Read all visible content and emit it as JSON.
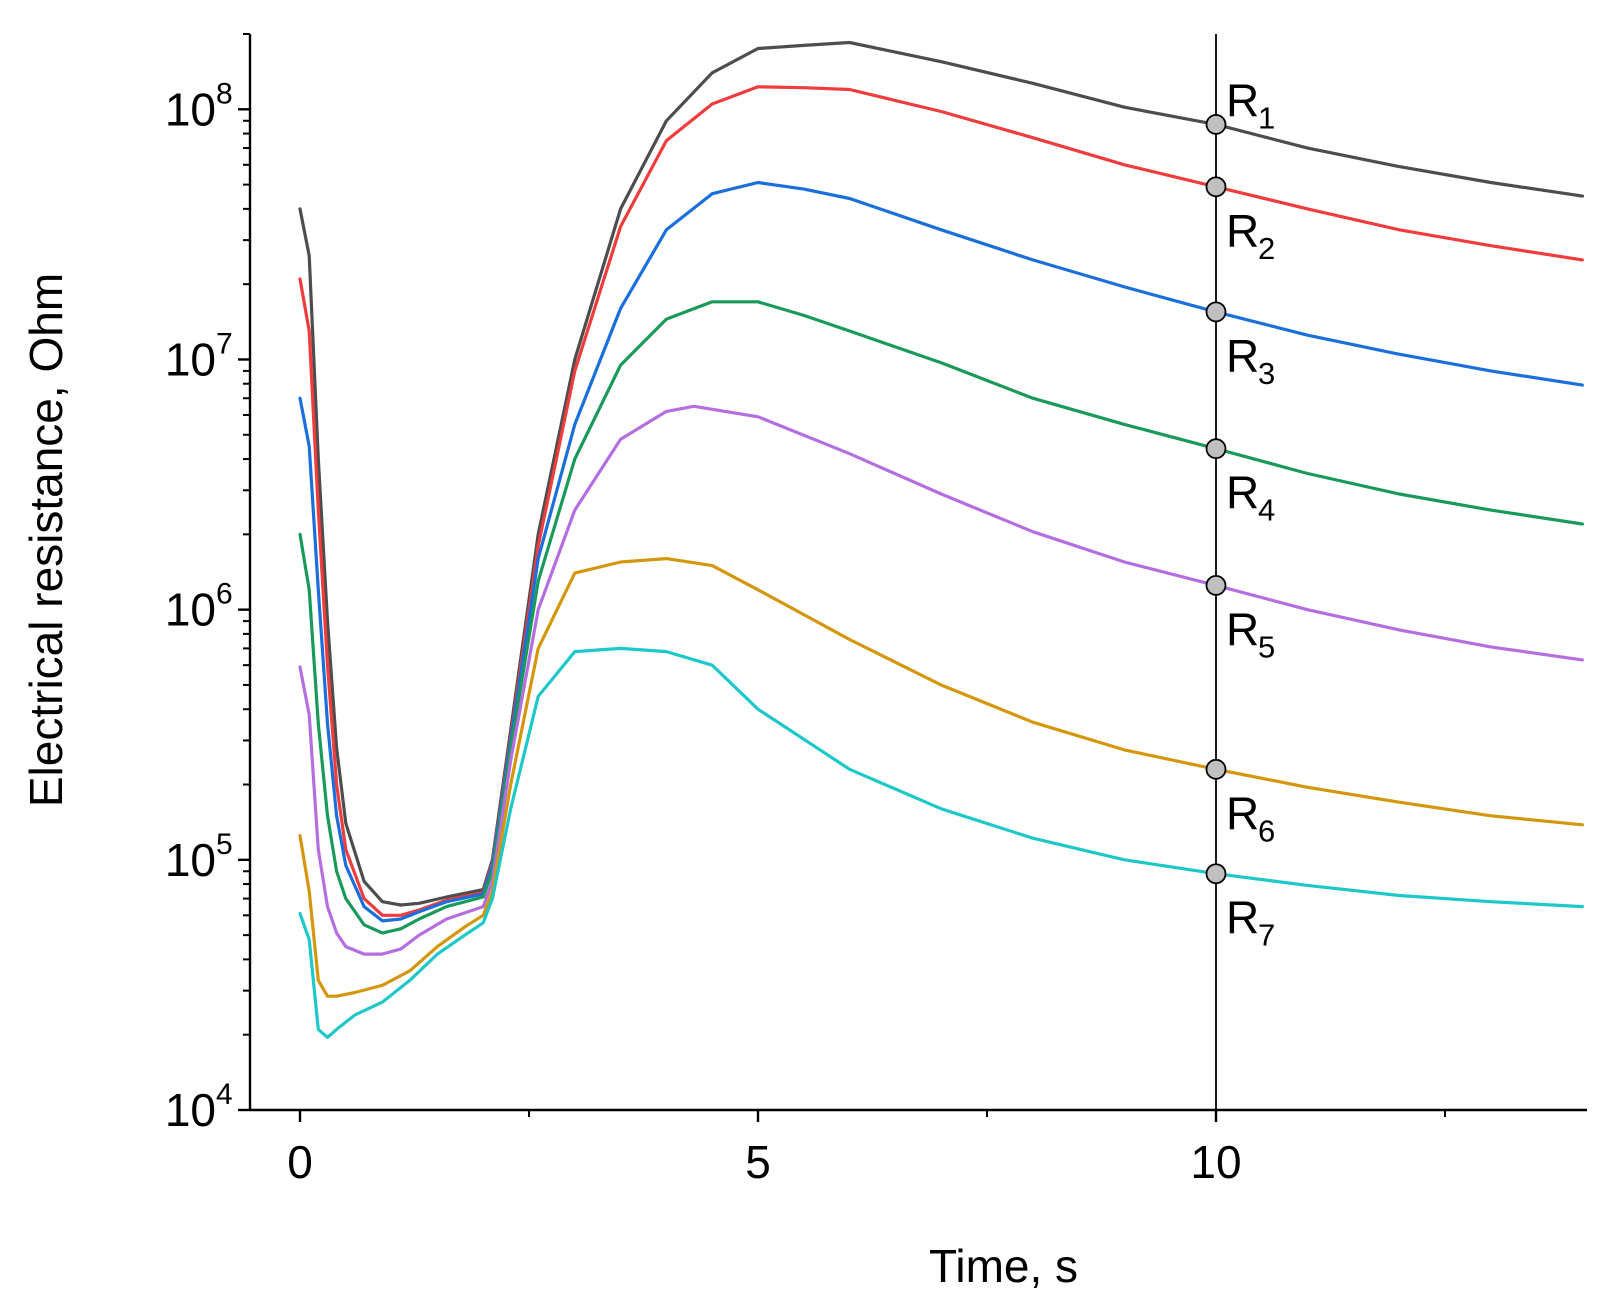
{
  "chart_data": {
    "type": "line",
    "title": "",
    "xlabel": "Time, s",
    "ylabel": "Electrical resistance, Ohm",
    "yscale": "log",
    "xlim": [
      -0.5,
      14
    ],
    "ylim": [
      10000,
      200000000
    ],
    "grid": false,
    "legend": "none",
    "x_ticks": [
      0,
      5,
      10
    ],
    "x_minor_ticks": [
      2.5,
      7.5,
      12.5
    ],
    "y_ticks": [
      {
        "value": 10000,
        "base": "10",
        "exp": "4"
      },
      {
        "value": 100000,
        "base": "10",
        "exp": "5"
      },
      {
        "value": 1000000,
        "base": "10",
        "exp": "6"
      },
      {
        "value": 10000000,
        "base": "10",
        "exp": "7"
      },
      {
        "value": 100000000,
        "base": "10",
        "exp": "8"
      }
    ],
    "marker_line_x": 10,
    "series": [
      {
        "name": "R1",
        "label_main": "R",
        "label_sub": "1",
        "color": "#4d4d4d",
        "label_pos": "above-right",
        "marker_value": 87000000,
        "points": [
          [
            0,
            40000000
          ],
          [
            0.1,
            26000000
          ],
          [
            0.2,
            4000000
          ],
          [
            0.3,
            900000
          ],
          [
            0.4,
            280000
          ],
          [
            0.5,
            140000
          ],
          [
            0.7,
            82000
          ],
          [
            0.9,
            68000
          ],
          [
            1.1,
            66000
          ],
          [
            1.3,
            67000
          ],
          [
            1.6,
            71000
          ],
          [
            2.0,
            76000
          ],
          [
            2.1,
            100000
          ],
          [
            2.3,
            330000
          ],
          [
            2.6,
            2000000
          ],
          [
            3.0,
            10000000
          ],
          [
            3.5,
            40000000
          ],
          [
            4.0,
            90000000
          ],
          [
            4.5,
            140000000
          ],
          [
            5.0,
            175000000
          ],
          [
            5.5,
            180000000
          ],
          [
            6.0,
            185000000
          ],
          [
            7.0,
            155000000
          ],
          [
            8.0,
            127000000
          ],
          [
            9.0,
            102000000
          ],
          [
            10.0,
            87000000
          ],
          [
            11.0,
            70000000
          ],
          [
            12.0,
            59000000
          ],
          [
            13.0,
            51000000
          ],
          [
            14.0,
            45000000
          ]
        ]
      },
      {
        "name": "R2",
        "label_main": "R",
        "label_sub": "2",
        "color": "#f03c3c",
        "label_pos": "below-right",
        "marker_value": 49000000,
        "points": [
          [
            0,
            21000000
          ],
          [
            0.1,
            13000000
          ],
          [
            0.2,
            2500000
          ],
          [
            0.3,
            600000
          ],
          [
            0.4,
            200000
          ],
          [
            0.5,
            110000
          ],
          [
            0.7,
            70000
          ],
          [
            0.9,
            60000
          ],
          [
            1.1,
            60000
          ],
          [
            1.3,
            63000
          ],
          [
            1.6,
            69000
          ],
          [
            2.0,
            74000
          ],
          [
            2.1,
            97000
          ],
          [
            2.3,
            310000
          ],
          [
            2.6,
            1800000
          ],
          [
            3.0,
            9000000
          ],
          [
            3.5,
            34000000
          ],
          [
            4.0,
            75000000
          ],
          [
            4.5,
            105000000
          ],
          [
            5.0,
            123000000
          ],
          [
            5.5,
            122000000
          ],
          [
            6.0,
            120000000
          ],
          [
            7.0,
            98000000
          ],
          [
            8.0,
            77000000
          ],
          [
            9.0,
            60000000
          ],
          [
            10.0,
            49000000
          ],
          [
            11.0,
            40000000
          ],
          [
            12.0,
            33000000
          ],
          [
            13.0,
            28500000
          ],
          [
            14.0,
            25000000
          ]
        ]
      },
      {
        "name": "R3",
        "label_main": "R",
        "label_sub": "3",
        "color": "#1a6fdc",
        "label_pos": "below-right",
        "marker_value": 15500000,
        "points": [
          [
            0,
            7000000
          ],
          [
            0.1,
            4500000
          ],
          [
            0.2,
            1200000
          ],
          [
            0.3,
            350000
          ],
          [
            0.4,
            150000
          ],
          [
            0.5,
            95000
          ],
          [
            0.7,
            65000
          ],
          [
            0.9,
            57000
          ],
          [
            1.1,
            58000
          ],
          [
            1.3,
            62000
          ],
          [
            1.6,
            68000
          ],
          [
            2.0,
            73000
          ],
          [
            2.1,
            95000
          ],
          [
            2.3,
            300000
          ],
          [
            2.6,
            1600000
          ],
          [
            3.0,
            5500000
          ],
          [
            3.5,
            16000000
          ],
          [
            4.0,
            33000000
          ],
          [
            4.5,
            46000000
          ],
          [
            5.0,
            51000000
          ],
          [
            5.5,
            48000000
          ],
          [
            6.0,
            44000000
          ],
          [
            7.0,
            33000000
          ],
          [
            8.0,
            25000000
          ],
          [
            9.0,
            19500000
          ],
          [
            10.0,
            15500000
          ],
          [
            11.0,
            12500000
          ],
          [
            12.0,
            10500000
          ],
          [
            13.0,
            9000000
          ],
          [
            14.0,
            7900000
          ]
        ]
      },
      {
        "name": "R4",
        "label_main": "R",
        "label_sub": "4",
        "color": "#1a9a5a",
        "label_pos": "below-right",
        "marker_value": 4400000,
        "points": [
          [
            0,
            2000000
          ],
          [
            0.1,
            1200000
          ],
          [
            0.2,
            350000
          ],
          [
            0.3,
            150000
          ],
          [
            0.4,
            90000
          ],
          [
            0.5,
            70000
          ],
          [
            0.7,
            55000
          ],
          [
            0.9,
            51000
          ],
          [
            1.1,
            53000
          ],
          [
            1.3,
            58000
          ],
          [
            1.6,
            65000
          ],
          [
            2.0,
            71000
          ],
          [
            2.1,
            90000
          ],
          [
            2.3,
            280000
          ],
          [
            2.6,
            1300000
          ],
          [
            3.0,
            4000000
          ],
          [
            3.5,
            9500000
          ],
          [
            4.0,
            14500000
          ],
          [
            4.5,
            17000000
          ],
          [
            5.0,
            17000000
          ],
          [
            5.5,
            15000000
          ],
          [
            6.0,
            13000000
          ],
          [
            7.0,
            9700000
          ],
          [
            8.0,
            7000000
          ],
          [
            9.0,
            5500000
          ],
          [
            10.0,
            4400000
          ],
          [
            11.0,
            3500000
          ],
          [
            12.0,
            2900000
          ],
          [
            13.0,
            2500000
          ],
          [
            14.0,
            2200000
          ]
        ]
      },
      {
        "name": "R5",
        "label_main": "R",
        "label_sub": "5",
        "color": "#b56ee0",
        "label_pos": "below-right",
        "marker_value": 1250000,
        "points": [
          [
            0,
            590000
          ],
          [
            0.1,
            380000
          ],
          [
            0.2,
            110000
          ],
          [
            0.3,
            65000
          ],
          [
            0.4,
            51000
          ],
          [
            0.5,
            45000
          ],
          [
            0.7,
            42000
          ],
          [
            0.9,
            42000
          ],
          [
            1.1,
            44000
          ],
          [
            1.3,
            50000
          ],
          [
            1.6,
            58000
          ],
          [
            2.0,
            65000
          ],
          [
            2.1,
            82000
          ],
          [
            2.3,
            250000
          ],
          [
            2.6,
            1000000
          ],
          [
            3.0,
            2500000
          ],
          [
            3.5,
            4800000
          ],
          [
            4.0,
            6200000
          ],
          [
            4.3,
            6500000
          ],
          [
            5.0,
            5900000
          ],
          [
            6.0,
            4200000
          ],
          [
            7.0,
            2900000
          ],
          [
            8.0,
            2050000
          ],
          [
            9.0,
            1550000
          ],
          [
            10.0,
            1250000
          ],
          [
            11.0,
            1000000
          ],
          [
            12.0,
            830000
          ],
          [
            13.0,
            710000
          ],
          [
            14.0,
            630000
          ]
        ]
      },
      {
        "name": "R6",
        "label_main": "R",
        "label_sub": "6",
        "color": "#d4960a",
        "label_pos": "below-right",
        "marker_value": 230000,
        "points": [
          [
            0,
            125000
          ],
          [
            0.1,
            75000
          ],
          [
            0.2,
            33000
          ],
          [
            0.3,
            28500
          ],
          [
            0.4,
            28500
          ],
          [
            0.6,
            29500
          ],
          [
            0.9,
            31500
          ],
          [
            1.2,
            36000
          ],
          [
            1.5,
            45000
          ],
          [
            1.8,
            54000
          ],
          [
            2.0,
            60000
          ],
          [
            2.1,
            75000
          ],
          [
            2.3,
            200000
          ],
          [
            2.6,
            700000
          ],
          [
            3.0,
            1400000
          ],
          [
            3.5,
            1550000
          ],
          [
            4.0,
            1600000
          ],
          [
            4.5,
            1500000
          ],
          [
            5.0,
            1200000
          ],
          [
            6.0,
            760000
          ],
          [
            7.0,
            500000
          ],
          [
            8.0,
            355000
          ],
          [
            9.0,
            275000
          ],
          [
            10.0,
            230000
          ],
          [
            11.0,
            195000
          ],
          [
            12.0,
            170000
          ],
          [
            13.0,
            150000
          ],
          [
            14.0,
            138000
          ]
        ]
      },
      {
        "name": "R7",
        "label_main": "R",
        "label_sub": "7",
        "color": "#1ec8c8",
        "label_pos": "below-right",
        "marker_value": 88000,
        "points": [
          [
            0,
            61000
          ],
          [
            0.1,
            48000
          ],
          [
            0.2,
            21000
          ],
          [
            0.3,
            19500
          ],
          [
            0.4,
            21000
          ],
          [
            0.6,
            24000
          ],
          [
            0.9,
            27000
          ],
          [
            1.2,
            33000
          ],
          [
            1.5,
            42000
          ],
          [
            1.8,
            50000
          ],
          [
            2.0,
            56000
          ],
          [
            2.1,
            70000
          ],
          [
            2.3,
            160000
          ],
          [
            2.6,
            450000
          ],
          [
            3.0,
            680000
          ],
          [
            3.5,
            700000
          ],
          [
            4.0,
            680000
          ],
          [
            4.5,
            600000
          ],
          [
            5.0,
            400000
          ],
          [
            6.0,
            230000
          ],
          [
            7.0,
            160000
          ],
          [
            8.0,
            122000
          ],
          [
            9.0,
            100000
          ],
          [
            10.0,
            88000
          ],
          [
            11.0,
            79000
          ],
          [
            12.0,
            72000
          ],
          [
            13.0,
            68000
          ],
          [
            14.0,
            65000
          ]
        ]
      }
    ]
  }
}
